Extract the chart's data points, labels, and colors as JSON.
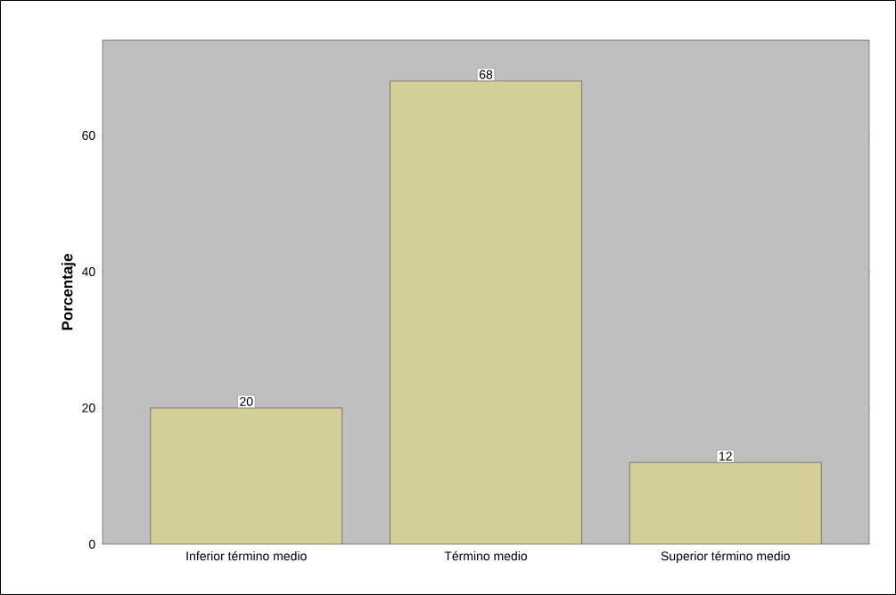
{
  "chart_data": {
    "type": "bar",
    "ylabel": "Porcentaje",
    "categories": [
      "Inferior término medio",
      "Término medio",
      "Superior término medio"
    ],
    "values": [
      20,
      68,
      12
    ],
    "color": "#d4cf98",
    "ylim": [
      0,
      74
    ],
    "yticks": [
      0,
      20,
      40,
      60
    ],
    "data_labels": true
  }
}
